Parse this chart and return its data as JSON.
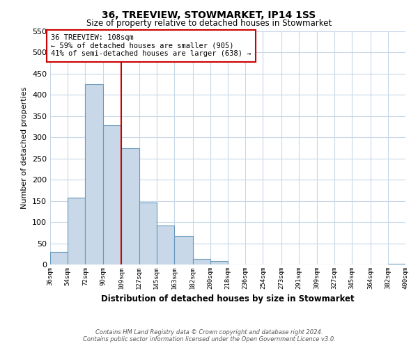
{
  "title": "36, TREEVIEW, STOWMARKET, IP14 1SS",
  "subtitle": "Size of property relative to detached houses in Stowmarket",
  "xlabel": "Distribution of detached houses by size in Stowmarket",
  "ylabel": "Number of detached properties",
  "bin_edges": [
    36,
    54,
    72,
    90,
    109,
    127,
    145,
    163,
    182,
    200,
    218,
    236,
    254,
    273,
    291,
    309,
    327,
    345,
    364,
    382,
    400
  ],
  "bar_heights": [
    30,
    157,
    425,
    328,
    274,
    146,
    92,
    68,
    13,
    8,
    0,
    0,
    0,
    0,
    0,
    0,
    0,
    0,
    0,
    1
  ],
  "bar_color": "#c8d8e8",
  "bar_edge_color": "#6699bb",
  "vline_x": 109,
  "vline_color": "#cc0000",
  "ylim": [
    0,
    550
  ],
  "yticks": [
    0,
    50,
    100,
    150,
    200,
    250,
    300,
    350,
    400,
    450,
    500,
    550
  ],
  "xtick_labels": [
    "36sqm",
    "54sqm",
    "72sqm",
    "90sqm",
    "109sqm",
    "127sqm",
    "145sqm",
    "163sqm",
    "182sqm",
    "200sqm",
    "218sqm",
    "236sqm",
    "254sqm",
    "273sqm",
    "291sqm",
    "309sqm",
    "327sqm",
    "345sqm",
    "364sqm",
    "382sqm",
    "400sqm"
  ],
  "annotation_title": "36 TREEVIEW: 108sqm",
  "annotation_line1": "← 59% of detached houses are smaller (905)",
  "annotation_line2": "41% of semi-detached houses are larger (638) →",
  "annotation_box_color": "#ffffff",
  "annotation_box_edge_color": "#cc0000",
  "footer_line1": "Contains HM Land Registry data © Crown copyright and database right 2024.",
  "footer_line2": "Contains public sector information licensed under the Open Government Licence v3.0.",
  "bg_color": "#ffffff",
  "grid_color": "#c8d8e8"
}
